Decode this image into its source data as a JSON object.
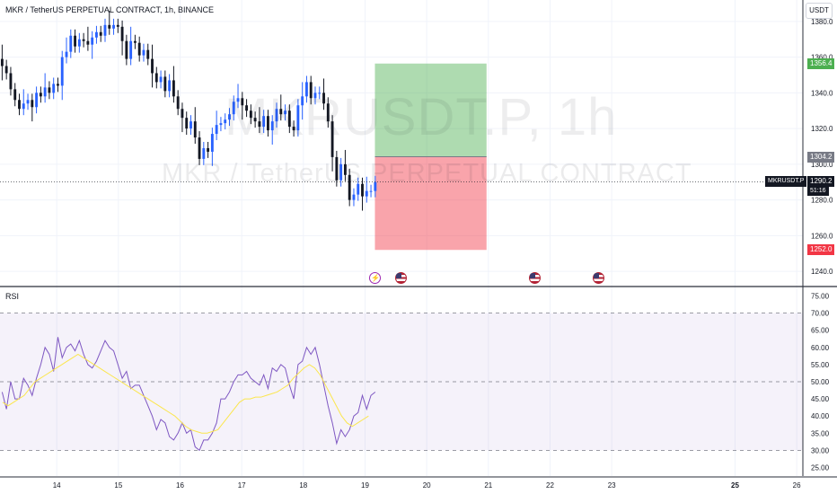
{
  "header": {
    "title": "MKR / TetherUS PERPETUAL CONTRACT, 1h, BINANCE",
    "unit": "USDT",
    "watermark_symbol": "MKRUSDT.P, 1h",
    "watermark_name": "MKR / TetherUS PERPETUAL CONTRACT"
  },
  "price_tags": {
    "target": "1356.4",
    "entry": "1304.2",
    "stop": "1252.0",
    "last": "1290.2",
    "symbol": "MKRUSDT.P",
    "countdown": "51:16"
  },
  "colors": {
    "up": "#2962ff",
    "down": "#131722",
    "profit_zone": "#4caf50",
    "loss_zone": "#f23645",
    "rsi_line": "#7e57c2",
    "rsi_ma": "#fbe64d",
    "rsi_band": "#7e57c2",
    "entry_tag": "#787b86"
  },
  "events": [
    {
      "type": "bolt-icon",
      "x_day": 19.16
    },
    {
      "type": "us-flag-icon",
      "x_day": 19.58
    },
    {
      "type": "us-flag-icon",
      "x_day": 21.75
    },
    {
      "type": "us-flag-icon",
      "x_day": 22.78
    }
  ],
  "rsi_panel_label": "RSI",
  "chart_data": [
    {
      "type": "candlestick",
      "title": "MKR / TetherUS PERPETUAL CONTRACT, 1h, BINANCE",
      "x_ticks": [
        "14",
        "15",
        "16",
        "17",
        "18",
        "19",
        "20",
        "21",
        "22",
        "23",
        "25",
        "26"
      ],
      "x_tick_days": [
        14,
        15,
        16,
        17,
        18,
        19,
        20,
        21,
        22,
        23,
        25,
        26
      ],
      "x_range_days": [
        13.08,
        26.1
      ],
      "y_ticks": [
        "1240.0",
        "1260.0",
        "1280.0",
        "1300.0",
        "1320.0",
        "1340.0",
        "1360.0",
        "1380.0"
      ],
      "ylim": [
        1232,
        1392
      ],
      "last_price": 1290.2,
      "series_close": [
        1355,
        1351,
        1342,
        1336,
        1331,
        1334,
        1336,
        1332,
        1340,
        1338,
        1343,
        1340,
        1345,
        1344,
        1360,
        1363,
        1372,
        1366,
        1370,
        1369,
        1367,
        1371,
        1374,
        1372,
        1378,
        1376,
        1378,
        1377,
        1369,
        1359,
        1369,
        1368,
        1361,
        1364,
        1359,
        1351,
        1346,
        1349,
        1341,
        1347,
        1338,
        1331,
        1326,
        1320,
        1324,
        1315,
        1303,
        1309,
        1307,
        1317,
        1322,
        1323,
        1325,
        1328,
        1335,
        1337,
        1333,
        1330,
        1326,
        1324,
        1321,
        1327,
        1319,
        1324,
        1331,
        1328,
        1330,
        1321,
        1319,
        1333,
        1338,
        1346,
        1337,
        1340,
        1340,
        1334,
        1324,
        1304,
        1291,
        1300,
        1294,
        1280,
        1283,
        1289,
        1282,
        1285,
        1285,
        1290
      ],
      "trade": {
        "target": 1356.4,
        "entry": 1304.2,
        "stop": 1252.0,
        "start_day": 19.16,
        "end_day": 20.97
      }
    },
    {
      "type": "line",
      "title": "RSI",
      "y_ticks": [
        "25.00",
        "30.00",
        "35.00",
        "40.00",
        "45.00",
        "50.00",
        "55.00",
        "60.00",
        "65.00",
        "70.00",
        "75.00"
      ],
      "ylim": [
        22.5,
        77.5
      ],
      "band": [
        30,
        70
      ],
      "mid": 50,
      "rsi": [
        47,
        42,
        50,
        45,
        45,
        51,
        49,
        46,
        51,
        55,
        60,
        58,
        53,
        63,
        57,
        60,
        61,
        59,
        62,
        58,
        55,
        54,
        56,
        59,
        62,
        60,
        59,
        55,
        51,
        53,
        48,
        49,
        49,
        46,
        43,
        40,
        36,
        39,
        38,
        34,
        33,
        35,
        38,
        35,
        36,
        31,
        30,
        33,
        33,
        35,
        38,
        45,
        45,
        47,
        50,
        52,
        52,
        53,
        51,
        50,
        49,
        52,
        48,
        54,
        53,
        55,
        54,
        49,
        45,
        55,
        56,
        60,
        58,
        60,
        55,
        49,
        43,
        38,
        32,
        36,
        34,
        36,
        40,
        41,
        46,
        42,
        46,
        47
      ],
      "ma": [
        44,
        43,
        44,
        45,
        46,
        48,
        50,
        51,
        52,
        53,
        54,
        55,
        56,
        57,
        58,
        57,
        56,
        55,
        54,
        53,
        52,
        51,
        50,
        49,
        48,
        47,
        46,
        45,
        44,
        43,
        42,
        41,
        40,
        38.5,
        37,
        36,
        35.5,
        35,
        35,
        35.5,
        36,
        38,
        40,
        42,
        44,
        45,
        45,
        45.5,
        45.5,
        46,
        46.5,
        47,
        48,
        49,
        51,
        52.5,
        54,
        55,
        54,
        52,
        49,
        46,
        43,
        40,
        38,
        37,
        38,
        39,
        40
      ]
    }
  ]
}
